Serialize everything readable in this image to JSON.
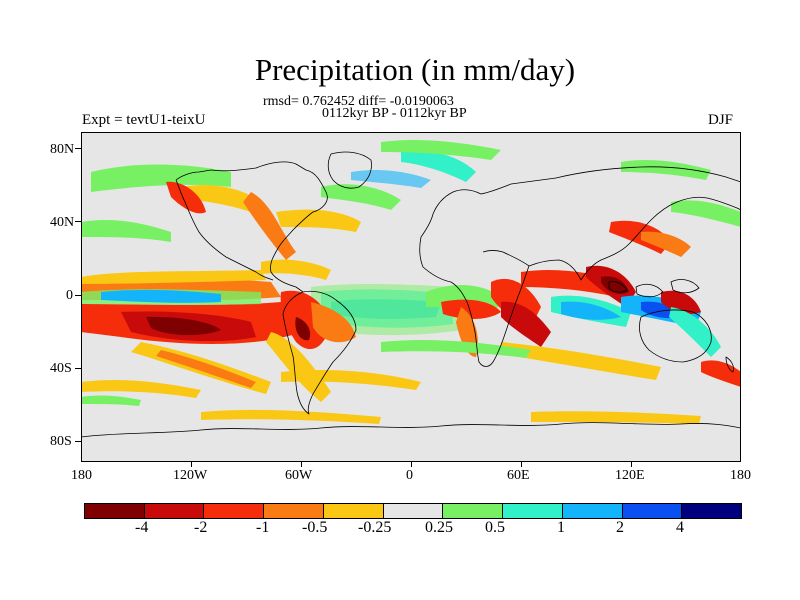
{
  "title": "Precipitation (in mm/day)",
  "stats": "rmsd= 0.762452 diff= -0.0190063",
  "period": "0112kyr BP - 0112kyr BP",
  "experiment": "Expt = tevtU1-teixU",
  "season": "DJF",
  "axes": {
    "y_labels": [
      "80N",
      "40N",
      "0",
      "40S",
      "80S"
    ],
    "x_labels": [
      "180",
      "120W",
      "60W",
      "0",
      "60E",
      "120E",
      "180"
    ]
  },
  "colorbar": {
    "colors": [
      "#7f0000",
      "#c80a0a",
      "#f52d0a",
      "#fa7a14",
      "#fac814",
      "#e6e6e6",
      "#78f064",
      "#32f0c8",
      "#14b4fa",
      "#0a50f0",
      "#00007f"
    ],
    "labels": [
      "-4",
      "-2",
      "-1",
      "-0.5",
      "-0.25",
      "0.25",
      "0.5",
      "1",
      "2",
      "4"
    ]
  }
}
